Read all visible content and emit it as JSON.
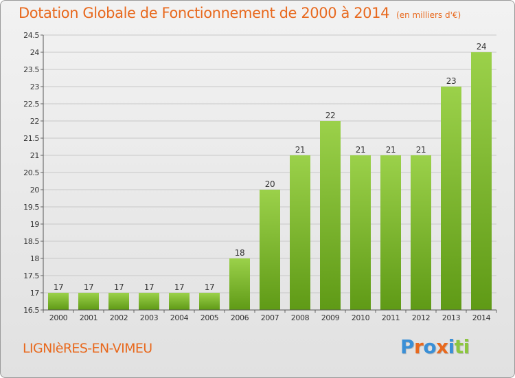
{
  "title": {
    "main": "Dotation Globale de Fonctionnement de 2000 à 2014",
    "sub": "(en milliers d'€)"
  },
  "town": "LIGNIèRES-EN-VIMEU",
  "logo": {
    "text": "Proxiti",
    "colors": [
      "#3a8fd6",
      "#e8691e",
      "#3a8fd6",
      "#e8691e",
      "#3a8fd6",
      "#8cc63f",
      "#8cc63f"
    ]
  },
  "colors": {
    "accent": "#e8691e",
    "bar_top": "#9bd14a",
    "bar_bottom": "#5f9a16",
    "grid": "#c8c8c8"
  },
  "chart_data": {
    "type": "bar",
    "categories": [
      "2000",
      "2001",
      "2002",
      "2003",
      "2004",
      "2005",
      "2006",
      "2007",
      "2008",
      "2009",
      "2010",
      "2011",
      "2012",
      "2013",
      "2014"
    ],
    "values": [
      17,
      17,
      17,
      17,
      17,
      17,
      18,
      20,
      21,
      22,
      21,
      21,
      21,
      23,
      24
    ],
    "value_labels": [
      "17",
      "17",
      "17",
      "17",
      "17",
      "17",
      "18",
      "20",
      "21",
      "22",
      "21",
      "21",
      "21",
      "23",
      "24"
    ],
    "ylim": [
      16.5,
      24.5
    ],
    "yticks": [
      "16.5",
      "17",
      "17.5",
      "18",
      "18.5",
      "19",
      "19.5",
      "20",
      "20.5",
      "21",
      "21.5",
      "22",
      "22.5",
      "23",
      "23.5",
      "24",
      "24.5"
    ],
    "xlabel": "",
    "ylabel": "",
    "grid": true,
    "legend": "none"
  }
}
